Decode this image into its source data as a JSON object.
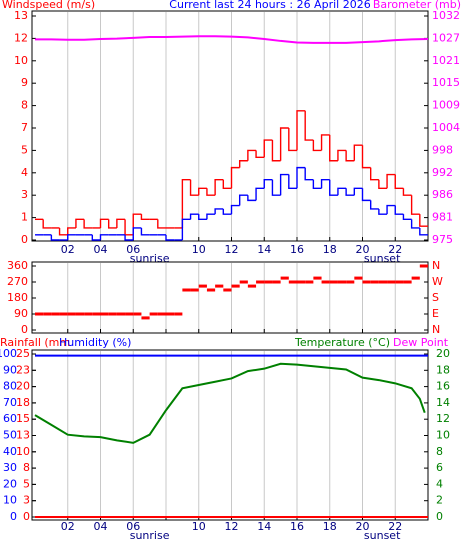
{
  "chart_data": [
    {
      "type": "line",
      "step": true,
      "title": "Current last 24 hours : 26 April 2026",
      "title_color": "#0000ff",
      "ylabel": "Windspeed (m/s)",
      "ycolor": "#ff0000",
      "y2label": "Barometer (mb)",
      "y2color": "#ff00ff",
      "xlim": [
        0,
        24
      ],
      "xticks": [
        {
          "value": 2,
          "label": "02"
        },
        {
          "value": 4,
          "label": "04"
        },
        {
          "value": 6,
          "label": "06"
        },
        {
          "value": 8,
          "label": null
        },
        10,
        12,
        14,
        16,
        18,
        20,
        22
      ],
      "ylim": [
        0,
        13
      ],
      "yticks": [
        0,
        {
          "value": 1.3,
          "label": "1"
        },
        {
          "value": 2.6,
          "label": "3"
        },
        {
          "value": 3.9,
          "label": "4"
        },
        {
          "value": 5.2,
          "label": "5"
        },
        {
          "value": 6.5,
          "label": "7"
        },
        {
          "value": 7.8,
          "label": "8"
        },
        {
          "value": 9.1,
          "label": "9"
        },
        {
          "value": 10.4,
          "label": "10"
        },
        {
          "value": 11.7,
          "label": "12"
        },
        13
      ],
      "y2lim": [
        974.9,
        1032.4
      ],
      "y2ticks": [
        {
          "value": 974.9,
          "label": "975"
        },
        {
          "value": 980.65,
          "label": "981"
        },
        {
          "value": 986.4,
          "label": "986"
        },
        {
          "value": 992.15,
          "label": "992"
        },
        {
          "value": 997.9,
          "label": "998"
        },
        {
          "value": 1003.65,
          "label": "1004"
        },
        {
          "value": 1009.4,
          "label": "1009"
        },
        {
          "value": 1015.15,
          "label": "1015"
        },
        {
          "value": 1020.9,
          "label": "1021"
        },
        {
          "value": 1026.65,
          "label": "1027"
        },
        {
          "value": 1032.4,
          "label": "1032"
        }
      ],
      "annotations": [
        {
          "text": "sunrise",
          "x": 7
        },
        {
          "text": "sunset",
          "x": 21.2
        }
      ],
      "x": [
        0,
        0.5,
        1,
        1.5,
        2,
        2.5,
        3,
        3.5,
        4,
        4.5,
        5,
        5.5,
        6,
        6.5,
        7,
        7.5,
        8,
        8.5,
        9,
        9.5,
        10,
        10.5,
        11,
        11.5,
        12,
        12.5,
        13,
        13.5,
        14,
        14.5,
        15,
        15.5,
        16,
        16.5,
        17,
        17.5,
        18,
        18.5,
        19,
        19.5,
        20,
        20.5,
        21,
        21.5,
        22,
        22.5,
        23,
        23.5
      ],
      "series": [
        {
          "color": "#ff0000",
          "values": [
            1.2,
            0.7,
            0.7,
            0.3,
            0.7,
            1.2,
            0.7,
            0.7,
            1.2,
            0.7,
            1.2,
            0.3,
            1.5,
            1.2,
            1.2,
            0.7,
            0.7,
            0.7,
            3.5,
            2.6,
            3.0,
            2.6,
            3.5,
            3.0,
            4.2,
            4.6,
            5.2,
            4.8,
            5.8,
            4.6,
            6.5,
            5.2,
            7.5,
            5.8,
            5.2,
            6.1,
            4.6,
            5.2,
            4.6,
            5.5,
            4.2,
            3.5,
            3.0,
            3.8,
            3.0,
            2.6,
            1.5,
            0.8
          ]
        },
        {
          "color": "#0000ff",
          "values": [
            0.3,
            0.3,
            0,
            0,
            0.3,
            0.3,
            0.3,
            0,
            0.3,
            0.3,
            0.3,
            0,
            0.7,
            0.3,
            0.3,
            0.3,
            0,
            0,
            1.2,
            1.5,
            1.2,
            1.5,
            1.8,
            1.5,
            2.0,
            2.6,
            2.3,
            3.0,
            3.5,
            2.6,
            3.8,
            3.0,
            4.2,
            3.5,
            3.0,
            3.5,
            2.6,
            3.0,
            2.6,
            3.0,
            2.3,
            1.8,
            1.5,
            2.0,
            1.5,
            1.2,
            0.7,
            0.3
          ]
        },
        {
          "color": "#ff00ff",
          "axis": "y2",
          "step": false,
          "x": [
            0,
            1,
            2,
            3,
            4,
            5,
            6,
            7,
            8,
            9,
            10,
            11,
            12,
            13,
            14,
            15,
            16,
            17,
            18,
            19,
            20,
            21,
            22,
            23,
            24
          ],
          "values": [
            1026.4,
            1026.4,
            1026.3,
            1026.3,
            1026.5,
            1026.6,
            1026.8,
            1027.0,
            1027.0,
            1027.1,
            1027.2,
            1027.2,
            1027.1,
            1026.9,
            1026.5,
            1026.0,
            1025.6,
            1025.5,
            1025.5,
            1025.5,
            1025.7,
            1025.9,
            1026.2,
            1026.4,
            1026.5
          ]
        }
      ]
    },
    {
      "type": "scatter",
      "ycolor": "#ff0000",
      "y2color": "#ff0000",
      "xlim": [
        0,
        24
      ],
      "xticks": [
        {
          "value": 2,
          "label": "02"
        },
        {
          "value": 4,
          "label": "04"
        },
        {
          "value": 6,
          "label": "06"
        },
        {
          "value": 8,
          "label": null
        },
        10,
        12,
        14,
        16,
        18,
        20,
        22
      ],
      "ylim": [
        0,
        360
      ],
      "yticks": [
        0,
        90,
        180,
        270,
        360
      ],
      "y2lim": [
        0,
        360
      ],
      "y2ticks": [
        {
          "value": 0,
          "label": "N"
        },
        {
          "value": 90,
          "label": "E"
        },
        {
          "value": 180,
          "label": "S"
        },
        {
          "value": 270,
          "label": "W"
        },
        {
          "value": 360,
          "label": "N"
        }
      ],
      "x": [
        0,
        0.5,
        1,
        1.5,
        2,
        2.5,
        3,
        3.5,
        4,
        4.5,
        5,
        5.5,
        6,
        6.5,
        7,
        7.5,
        8,
        8.5,
        9,
        9.5,
        10,
        10.5,
        11,
        11.5,
        12,
        12.5,
        13,
        13.5,
        14,
        14.5,
        15,
        15.5,
        16,
        16.5,
        17,
        17.5,
        18,
        18.5,
        19,
        19.5,
        20,
        20.5,
        21,
        21.5,
        22,
        22.5,
        23,
        23.5
      ],
      "series": [
        {
          "color": "#ff0000",
          "values": [
            90,
            90,
            90,
            90,
            90,
            90,
            90,
            90,
            90,
            90,
            90,
            90,
            90,
            68,
            90,
            90,
            90,
            90,
            225,
            225,
            247,
            225,
            247,
            225,
            247,
            270,
            247,
            270,
            270,
            270,
            292,
            270,
            270,
            270,
            292,
            270,
            270,
            270,
            270,
            292,
            270,
            270,
            270,
            270,
            270,
            270,
            292,
            360
          ]
        }
      ]
    },
    {
      "type": "line",
      "y3label": "Rainfall (mm",
      "y3color": "#ff0000",
      "ylabel": "Humidity (%)",
      "ycolor": "#0000ff",
      "y2label": "Temperature (°C)",
      "y2color": "#008000",
      "y4label": "Dew Point",
      "y4color": "#ff00ff",
      "xlim": [
        0,
        24
      ],
      "xticks": [
        {
          "value": 2,
          "label": "02"
        },
        {
          "value": 4,
          "label": "04"
        },
        {
          "value": 6,
          "label": "06"
        },
        {
          "value": 8,
          "label": null
        },
        10,
        12,
        14,
        16,
        18,
        20,
        22
      ],
      "ylim": [
        0,
        100
      ],
      "yticks": [
        0,
        10,
        20,
        30,
        40,
        50,
        60,
        70,
        80,
        90,
        100
      ],
      "y2lim": [
        0,
        20
      ],
      "y2ticks": [
        0,
        2,
        4,
        6,
        8,
        10,
        12,
        14,
        16,
        18,
        20
      ],
      "y3lim": [
        0,
        25
      ],
      "y3ticks": [
        0,
        {
          "value": 2.5,
          "label": "3"
        },
        5,
        {
          "value": 7.5,
          "label": "8"
        },
        10,
        {
          "value": 12.5,
          "label": "13"
        },
        15,
        {
          "value": 17.5,
          "label": "18"
        },
        20,
        {
          "value": 22.5,
          "label": "23"
        },
        25
      ],
      "annotations": [
        {
          "text": "sunrise",
          "x": 7
        },
        {
          "text": "sunset",
          "x": 21.2
        }
      ],
      "series": [
        {
          "color": "#0000ff",
          "x": [
            0,
            24
          ],
          "values": [
            99,
            99
          ]
        },
        {
          "color": "#ff0000",
          "axis": "y3",
          "x": [
            0,
            24
          ],
          "values": [
            0,
            0
          ]
        },
        {
          "color": "#008000",
          "axis": "y2",
          "x": [
            0,
            1,
            2,
            3,
            4,
            5,
            6,
            7,
            8,
            9,
            10,
            11,
            12,
            13,
            14,
            15,
            16,
            17,
            18,
            19,
            20,
            21,
            22,
            23,
            23.5,
            23.8
          ],
          "values": [
            12.5,
            11.3,
            10.1,
            9.9,
            9.8,
            9.4,
            9.1,
            10.1,
            13.1,
            15.8,
            16.2,
            16.6,
            17.0,
            17.9,
            18.2,
            18.8,
            18.7,
            18.5,
            18.3,
            18.1,
            17.1,
            16.8,
            16.4,
            15.8,
            14.5,
            12.8
          ]
        }
      ]
    }
  ]
}
